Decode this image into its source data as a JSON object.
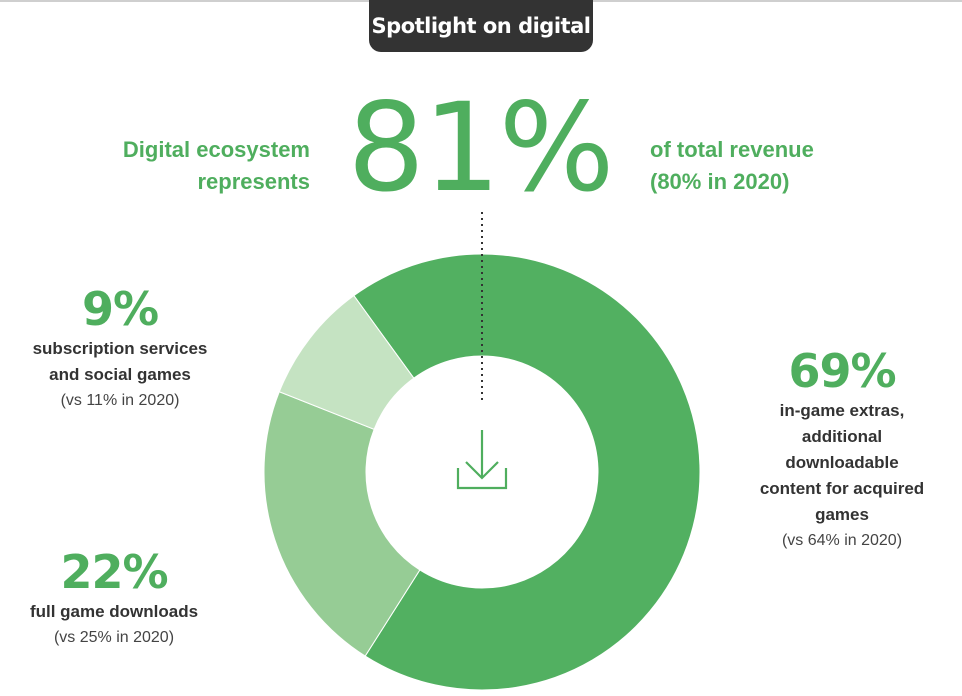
{
  "header": {
    "tab_label": "Spotlight on digital"
  },
  "headline": {
    "left_line1": "Digital ecosystem",
    "left_line2": "represents",
    "big_value": "81%",
    "right_line1": "of total revenue",
    "right_line2": "(80% in 2020)"
  },
  "chart_data": {
    "type": "pie",
    "categories": [
      "in-game extras, additional downloadable content for acquired games",
      "full game downloads",
      "subscription services and social games"
    ],
    "values": [
      69,
      22,
      9
    ],
    "comparison_2020": [
      64,
      25,
      11
    ],
    "colors": [
      "#52b061",
      "#96cc95",
      "#c5e3c2"
    ],
    "labels": [
      {
        "pct": "69%",
        "lines": [
          "in-game extras,",
          "additional",
          "downloadable",
          "content for acquired",
          "games"
        ],
        "cmp": "(vs 64% in 2020)"
      },
      {
        "pct": "22%",
        "lines": [
          "full game downloads"
        ],
        "cmp": "(vs 25% in 2020)"
      },
      {
        "pct": "9%",
        "lines": [
          "subscription services",
          "and social games"
        ],
        "cmp": "(vs 11% in 2020)"
      }
    ]
  },
  "icons": {
    "center": "download-icon"
  },
  "colors": {
    "accent": "#4fae5e",
    "tab_bg": "#333333",
    "text": "#333333"
  }
}
